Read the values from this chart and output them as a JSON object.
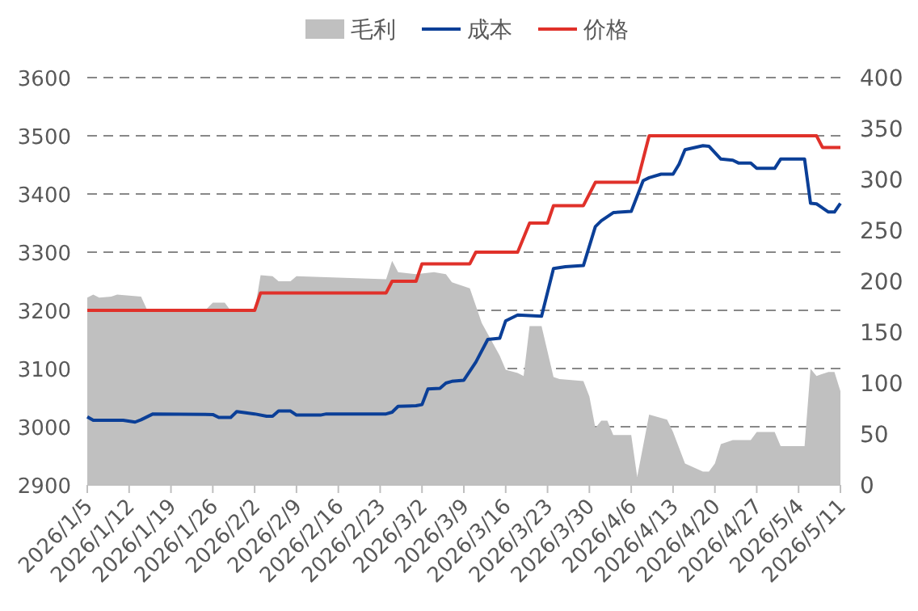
{
  "chart_data": {
    "type": "line",
    "legend": "top",
    "grid": "y",
    "xlim": [
      "2026-01-05",
      "2026-05-11"
    ],
    "xticks": [
      {
        "value": "2026-01-05",
        "label": "2026/1/5"
      },
      {
        "value": "2026-01-12",
        "label": "2026/1/12"
      },
      {
        "value": "2026-01-19",
        "label": "2026/1/19"
      },
      {
        "value": "2026-01-26",
        "label": "2026/1/26"
      },
      {
        "value": "2026-02-02",
        "label": "2026/2/2"
      },
      {
        "value": "2026-02-09",
        "label": "2026/2/9"
      },
      {
        "value": "2026-02-16",
        "label": "2026/2/16"
      },
      {
        "value": "2026-02-23",
        "label": "2026/2/23"
      },
      {
        "value": "2026-03-02",
        "label": "2026/3/2"
      },
      {
        "value": "2026-03-09",
        "label": "2026/3/9"
      },
      {
        "value": "2026-03-16",
        "label": "2026/3/16"
      },
      {
        "value": "2026-03-23",
        "label": "2026/3/23"
      },
      {
        "value": "2026-03-30",
        "label": "2026/3/30"
      },
      {
        "value": "2026-04-06",
        "label": "2026/4/6"
      },
      {
        "value": "2026-04-13",
        "label": "2026/4/13"
      },
      {
        "value": "2026-04-20",
        "label": "2026/4/20"
      },
      {
        "value": "2026-04-27",
        "label": "2026/4/27"
      },
      {
        "value": "2026-05-04",
        "label": "2026/5/4"
      },
      {
        "value": "2026-05-11",
        "label": "2026/5/11"
      }
    ],
    "ylim": [
      2900,
      3600
    ],
    "yticks": [
      2900,
      3000,
      3100,
      3200,
      3300,
      3400,
      3500,
      3600
    ],
    "y2lim": [
      0,
      400
    ],
    "y2ticks": [
      0,
      50,
      100,
      150,
      200,
      250,
      300,
      350,
      400
    ],
    "series": [
      {
        "name": "毛利",
        "type": "area",
        "axis": "y2",
        "color": "#c0c0c0",
        "x": [
          "2026-01-05",
          "2026-01-06",
          "2026-01-07",
          "2026-01-09",
          "2026-01-10",
          "2026-01-14",
          "2026-01-15",
          "2026-01-17",
          "2026-01-20",
          "2026-01-23",
          "2026-01-25",
          "2026-01-26",
          "2026-01-28",
          "2026-01-29",
          "2026-02-02",
          "2026-02-03",
          "2026-02-05",
          "2026-02-06",
          "2026-02-08",
          "2026-02-09",
          "2026-02-14",
          "2026-02-24",
          "2026-02-25",
          "2026-02-26",
          "2026-03-01",
          "2026-03-04",
          "2026-03-06",
          "2026-03-07",
          "2026-03-10",
          "2026-03-12",
          "2026-03-15",
          "2026-03-16",
          "2026-03-18",
          "2026-03-19",
          "2026-03-20",
          "2026-03-22",
          "2026-03-24",
          "2026-03-25",
          "2026-03-29",
          "2026-03-30",
          "2026-03-31",
          "2026-04-01",
          "2026-04-02",
          "2026-04-03",
          "2026-04-06",
          "2026-04-07",
          "2026-04-09",
          "2026-04-12",
          "2026-04-13",
          "2026-04-15",
          "2026-04-18",
          "2026-04-19",
          "2026-04-20",
          "2026-04-21",
          "2026-04-23",
          "2026-04-26",
          "2026-04-27",
          "2026-04-30",
          "2026-05-01",
          "2026-05-05",
          "2026-05-06",
          "2026-05-07",
          "2026-05-09",
          "2026-05-10",
          "2026-05-11"
        ],
        "values": [
          184,
          187,
          184,
          185,
          187,
          185,
          172,
          172,
          173,
          172,
          173,
          179,
          179,
          171,
          171,
          206,
          205,
          200,
          200,
          205,
          204,
          202,
          220,
          209,
          207,
          209,
          207,
          199,
          193,
          159,
          127,
          113,
          110,
          107,
          156,
          156,
          106,
          104,
          102,
          87,
          56,
          63,
          63,
          49,
          49,
          8,
          69,
          64,
          52,
          21,
          13,
          13,
          21,
          40,
          44,
          44,
          52,
          52,
          38,
          38,
          114,
          107,
          111,
          111,
          92
        ]
      },
      {
        "name": "成本",
        "type": "line",
        "color": "#0b3f97",
        "x": [
          "2026-01-05",
          "2026-01-06",
          "2026-01-11",
          "2026-01-13",
          "2026-01-14",
          "2026-01-16",
          "2026-01-26",
          "2026-01-27",
          "2026-01-29",
          "2026-01-30",
          "2026-02-02",
          "2026-02-04",
          "2026-02-05",
          "2026-02-06",
          "2026-02-08",
          "2026-02-09",
          "2026-02-13",
          "2026-02-14",
          "2026-02-24",
          "2026-02-25",
          "2026-02-26",
          "2026-03-01",
          "2026-03-02",
          "2026-03-03",
          "2026-03-05",
          "2026-03-06",
          "2026-03-07",
          "2026-03-09",
          "2026-03-11",
          "2026-03-13",
          "2026-03-15",
          "2026-03-16",
          "2026-03-18",
          "2026-03-22",
          "2026-03-24",
          "2026-03-26",
          "2026-03-29",
          "2026-03-31",
          "2026-04-01",
          "2026-04-03",
          "2026-04-06",
          "2026-04-08",
          "2026-04-09",
          "2026-04-11",
          "2026-04-13",
          "2026-04-14",
          "2026-04-15",
          "2026-04-18",
          "2026-04-19",
          "2026-04-21",
          "2026-04-23",
          "2026-04-24",
          "2026-04-26",
          "2026-04-27",
          "2026-04-30",
          "2026-05-01",
          "2026-05-05",
          "2026-05-06",
          "2026-05-07",
          "2026-05-09",
          "2026-05-10",
          "2026-05-11"
        ],
        "values": [
          3017,
          3011,
          3011,
          3008,
          3012,
          3022,
          3021,
          3016,
          3016,
          3026,
          3022,
          3018,
          3018,
          3027,
          3027,
          3020,
          3020,
          3022,
          3022,
          3025,
          3035,
          3036,
          3038,
          3065,
          3066,
          3075,
          3078,
          3080,
          3111,
          3150,
          3152,
          3182,
          3192,
          3190,
          3272,
          3275,
          3277,
          3344,
          3354,
          3368,
          3370,
          3423,
          3428,
          3434,
          3434,
          3451,
          3476,
          3483,
          3482,
          3460,
          3458,
          3453,
          3453,
          3444,
          3444,
          3460,
          3460,
          3384,
          3383,
          3369,
          3369,
          3384
        ]
      },
      {
        "name": "价格",
        "type": "line",
        "color": "#e0312a",
        "x": [
          "2026-01-05",
          "2026-02-02",
          "2026-02-03",
          "2026-02-24",
          "2026-02-25",
          "2026-03-01",
          "2026-03-02",
          "2026-03-10",
          "2026-03-11",
          "2026-03-18",
          "2026-03-20",
          "2026-03-23",
          "2026-03-24",
          "2026-03-29",
          "2026-03-30",
          "2026-03-31",
          "2026-04-07",
          "2026-04-09",
          "2026-05-07",
          "2026-05-08",
          "2026-05-11"
        ],
        "values": [
          3200,
          3200,
          3230,
          3230,
          3250,
          3250,
          3280,
          3280,
          3300,
          3300,
          3350,
          3350,
          3380,
          3380,
          3400,
          3420,
          3420,
          3500,
          3500,
          3480,
          3480
        ]
      }
    ]
  }
}
